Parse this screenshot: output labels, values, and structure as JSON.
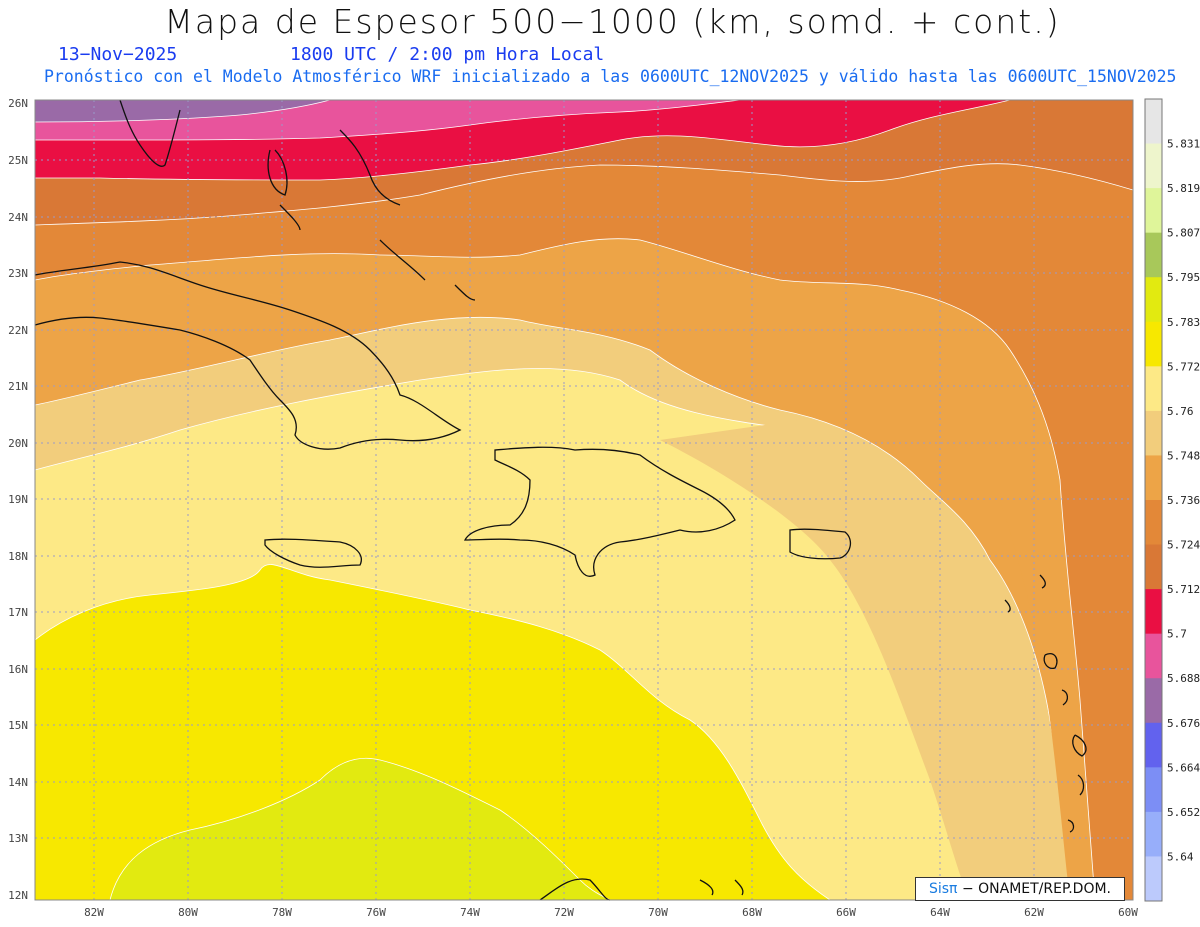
{
  "header": {
    "title": "Mapa de Espesor 500−1000 (km, somd. + cont.)",
    "date": "13−Nov−2025",
    "time": "1800 UTC / 2:00 pm Hora Local",
    "forecast": "Pronóstico con el Modelo Atmosférico WRF inicializado a las 0600UTC_12NOV2025 y válido hasta las  0600UTC_15NOV2025"
  },
  "map": {
    "lat_labels": [
      "26N",
      "25N",
      "24N",
      "23N",
      "22N",
      "21N",
      "20N",
      "19N",
      "18N",
      "17N",
      "16N",
      "15N",
      "14N",
      "13N",
      "12N"
    ],
    "lon_labels": [
      "82W",
      "80W",
      "78W",
      "76W",
      "74W",
      "72W",
      "70W",
      "68W",
      "66W",
      "64W",
      "62W",
      "60W"
    ]
  },
  "colorbar": {
    "labels": [
      "5.831",
      "5.819",
      "5.807",
      "5.795",
      "5.783",
      "5.772",
      "5.76",
      "5.748",
      "5.736",
      "5.724",
      "5.712",
      "5.7",
      "5.688",
      "5.676",
      "5.664",
      "5.652",
      "5.64"
    ],
    "colors": [
      "#e6e6e6",
      "#eef5cc",
      "#dff59a",
      "#a8c85a",
      "#e2ea10",
      "#f7e800",
      "#fde986",
      "#f2cd7c",
      "#eda447",
      "#e38838",
      "#d97836",
      "#ea0f43",
      "#e8549c",
      "#9a6aa7",
      "#6262ee",
      "#7c8ef5",
      "#97aefa",
      "#bccafc"
    ]
  },
  "credits": {
    "brand": "Sisπ",
    "text": "− ONAMET/REP.DOM."
  }
}
